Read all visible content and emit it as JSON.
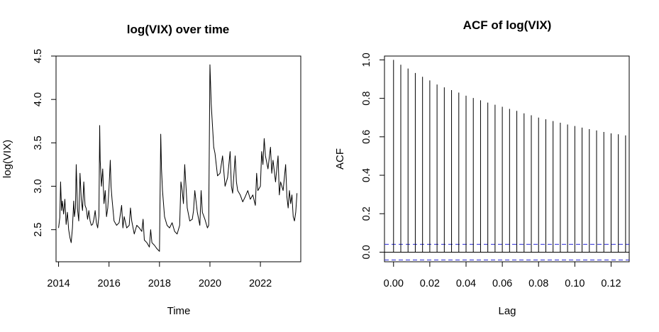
{
  "chart_data": [
    {
      "type": "line",
      "title": "log(VIX) over time",
      "xlabel": "Time",
      "ylabel": "log(VIX)",
      "xlim": [
        2013.9,
        2023.6
      ],
      "ylim": [
        2.13,
        4.5
      ],
      "x_ticks": [
        2014,
        2016,
        2018,
        2020,
        2022
      ],
      "x_tick_labels": [
        "2014",
        "2016",
        "2018",
        "2020",
        "2022"
      ],
      "y_ticks": [
        2.5,
        3.0,
        3.5,
        4.0,
        4.5
      ],
      "y_tick_labels": [
        "2.5",
        "3.0",
        "3.5",
        "4.0",
        "4.5"
      ],
      "line_color": "#000000",
      "series": [
        {
          "x": [
            2014.0,
            2014.05,
            2014.08,
            2014.12,
            2014.15,
            2014.2,
            2014.25,
            2014.3,
            2014.35,
            2014.4,
            2014.45,
            2014.5,
            2014.55,
            2014.6,
            2014.63,
            2014.67,
            2014.7,
            2014.75,
            2014.8,
            2014.85,
            2014.9,
            2014.95,
            2015.0,
            2015.05,
            2015.1,
            2015.15,
            2015.2,
            2015.25,
            2015.3,
            2015.35,
            2015.4,
            2015.45,
            2015.5,
            2015.55,
            2015.6,
            2015.63,
            2015.65,
            2015.7,
            2015.75,
            2015.8,
            2015.85,
            2015.9,
            2015.95,
            2016.0,
            2016.05,
            2016.08,
            2016.12,
            2016.2,
            2016.3,
            2016.4,
            2016.5,
            2016.55,
            2016.6,
            2016.7,
            2016.8,
            2016.85,
            2016.9,
            2017.0,
            2017.1,
            2017.2,
            2017.3,
            2017.35,
            2017.4,
            2017.5,
            2017.6,
            2017.65,
            2017.7,
            2017.8,
            2017.9,
            2018.0,
            2018.05,
            2018.08,
            2018.12,
            2018.2,
            2018.3,
            2018.4,
            2018.5,
            2018.6,
            2018.7,
            2018.8,
            2018.85,
            2018.9,
            2018.95,
            2019.0,
            2019.1,
            2019.2,
            2019.3,
            2019.35,
            2019.4,
            2019.5,
            2019.6,
            2019.65,
            2019.7,
            2019.8,
            2019.9,
            2019.95,
            2020.0,
            2020.05,
            2020.1,
            2020.15,
            2020.2,
            2020.25,
            2020.3,
            2020.4,
            2020.5,
            2020.6,
            2020.7,
            2020.8,
            2020.85,
            2020.9,
            2021.0,
            2021.05,
            2021.1,
            2021.2,
            2021.3,
            2021.4,
            2021.5,
            2021.6,
            2021.7,
            2021.8,
            2021.85,
            2021.9,
            2022.0,
            2022.05,
            2022.1,
            2022.15,
            2022.2,
            2022.3,
            2022.4,
            2022.45,
            2022.5,
            2022.6,
            2022.7,
            2022.75,
            2022.8,
            2022.9,
            2023.0,
            2023.05,
            2023.1,
            2023.15,
            2023.2,
            2023.25,
            2023.3,
            2023.35,
            2023.4,
            2023.45
          ],
          "y": [
            2.52,
            2.64,
            3.05,
            2.72,
            2.83,
            2.68,
            2.85,
            2.56,
            2.7,
            2.5,
            2.41,
            2.35,
            2.52,
            2.83,
            2.65,
            2.75,
            3.25,
            2.74,
            2.6,
            3.15,
            2.85,
            2.72,
            3.05,
            2.78,
            2.74,
            2.62,
            2.72,
            2.6,
            2.55,
            2.56,
            2.62,
            2.72,
            2.58,
            2.52,
            2.66,
            3.7,
            3.3,
            3.0,
            3.2,
            2.8,
            2.95,
            2.65,
            2.75,
            2.98,
            3.3,
            3.0,
            2.85,
            2.6,
            2.55,
            2.58,
            2.78,
            2.52,
            2.65,
            2.52,
            2.55,
            2.75,
            2.6,
            2.45,
            2.55,
            2.52,
            2.48,
            2.62,
            2.38,
            2.35,
            2.3,
            2.5,
            2.35,
            2.32,
            2.28,
            2.25,
            3.6,
            3.2,
            2.95,
            2.65,
            2.55,
            2.52,
            2.58,
            2.48,
            2.45,
            2.55,
            3.05,
            2.95,
            2.8,
            3.25,
            2.75,
            2.6,
            2.62,
            2.72,
            2.95,
            2.7,
            2.55,
            2.95,
            2.7,
            2.62,
            2.52,
            2.55,
            4.4,
            3.95,
            3.7,
            3.45,
            3.38,
            3.25,
            3.12,
            3.15,
            3.35,
            3.0,
            3.1,
            3.4,
            3.0,
            2.92,
            3.35,
            3.05,
            2.95,
            2.9,
            2.82,
            2.88,
            2.95,
            2.85,
            2.9,
            2.78,
            3.15,
            2.95,
            3.0,
            3.4,
            3.25,
            3.55,
            3.35,
            3.2,
            3.45,
            3.15,
            3.3,
            3.05,
            3.35,
            2.9,
            3.05,
            2.95,
            3.25,
            2.88,
            2.75,
            2.95,
            2.8,
            2.9,
            2.65,
            2.6,
            2.7,
            2.92
          ]
        }
      ]
    },
    {
      "type": "bar",
      "title": "ACF of log(VIX)",
      "xlabel": "Lag",
      "ylabel": "ACF",
      "xlim": [
        -0.005,
        0.13
      ],
      "ylim": [
        -0.05,
        1.02
      ],
      "x_ticks": [
        0,
        0.02,
        0.04,
        0.06,
        0.08,
        0.1,
        0.12
      ],
      "x_tick_labels": [
        "0.00",
        "0.02",
        "0.04",
        "0.06",
        "0.08",
        "0.10",
        "0.12"
      ],
      "y_ticks": [
        0,
        0.2,
        0.4,
        0.6,
        0.8,
        1.0
      ],
      "y_tick_labels": [
        "0.0",
        "0.2",
        "0.4",
        "0.6",
        "0.8",
        "1.0"
      ],
      "lag_step": 0.004,
      "values": [
        1.0,
        0.975,
        0.955,
        0.932,
        0.912,
        0.893,
        0.872,
        0.857,
        0.843,
        0.83,
        0.814,
        0.802,
        0.79,
        0.778,
        0.767,
        0.756,
        0.745,
        0.735,
        0.722,
        0.712,
        0.7,
        0.691,
        0.682,
        0.673,
        0.664,
        0.656,
        0.648,
        0.64,
        0.633,
        0.625,
        0.618,
        0.613,
        0.607
      ],
      "confidence_bounds": [
        0.041,
        -0.041
      ],
      "bar_color": "#000000",
      "ci_color": "#2b2bd6"
    }
  ]
}
